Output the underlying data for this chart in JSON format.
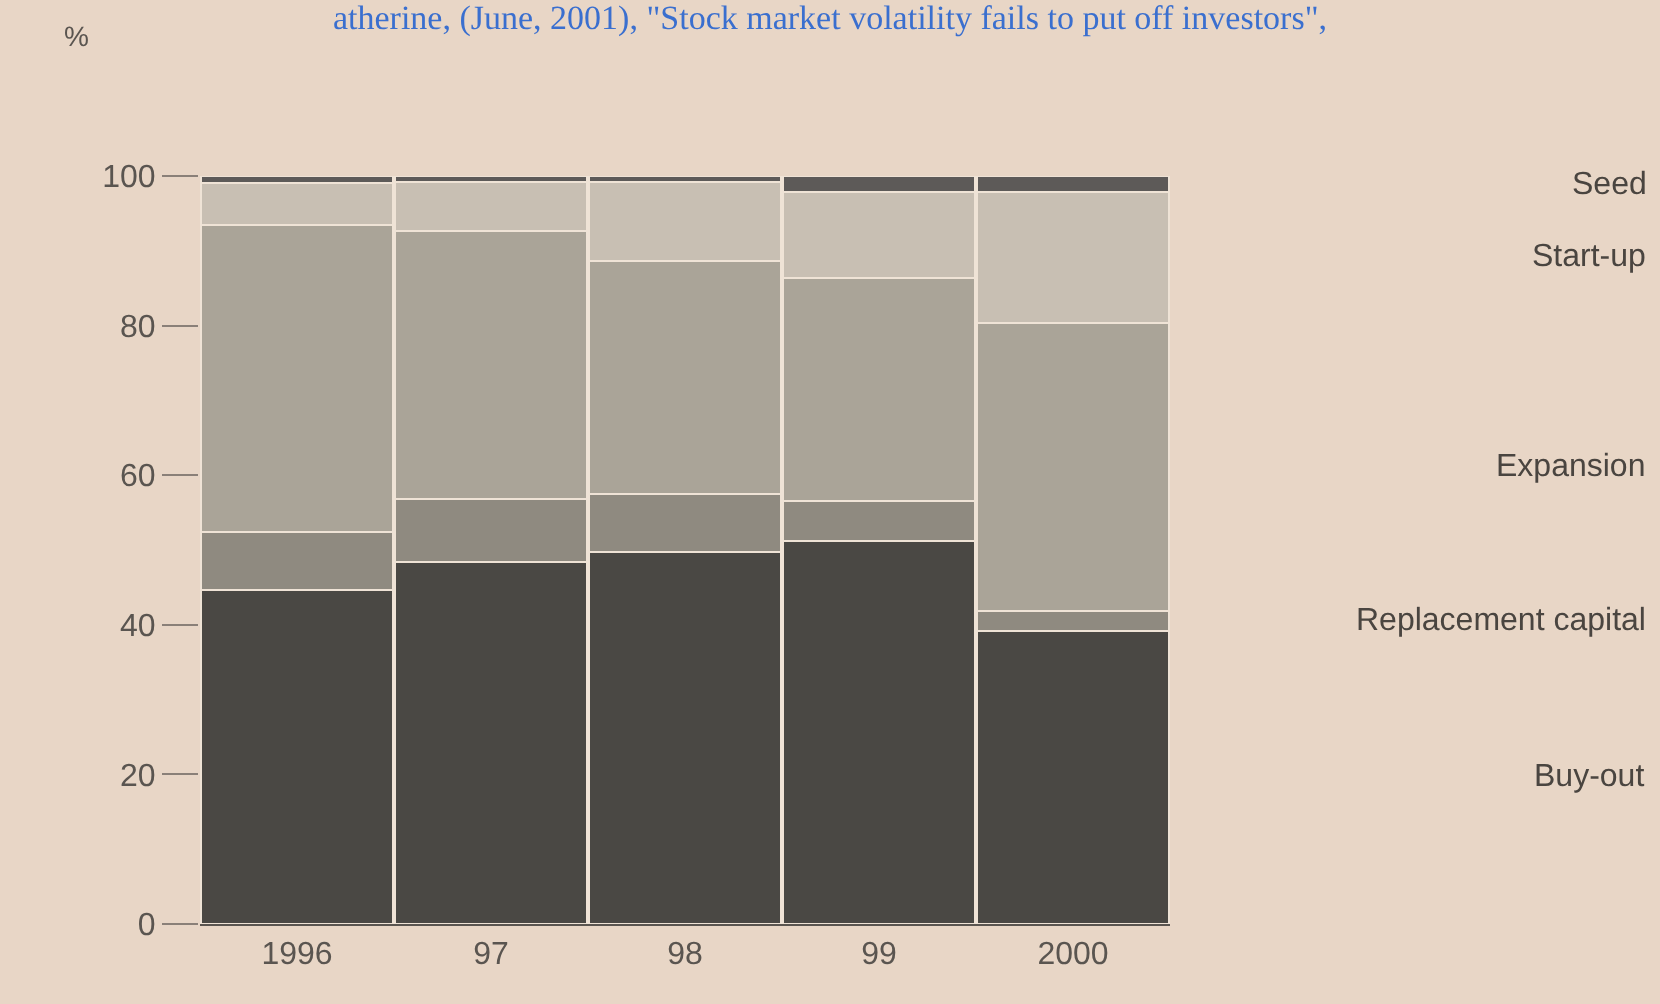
{
  "chart_data": {
    "type": "bar",
    "stacked": true,
    "title": "atherine, (June, 2001), \"Stock market volatility fails to put off investors\",",
    "ylabel": "%",
    "categories": [
      "1996",
      "97",
      "98",
      "99",
      "2000"
    ],
    "series": [
      {
        "name": "Buy-out",
        "color": "#4a4844",
        "values": [
          44.6,
          48.4,
          49.8,
          51.2,
          39.2
        ]
      },
      {
        "name": "Replacement capital",
        "color": "#8f8a80",
        "values": [
          7.8,
          8.4,
          7.7,
          5.4,
          2.7
        ]
      },
      {
        "name": "Expansion",
        "color": "#aaa498",
        "values": [
          41,
          35.9,
          31.1,
          29.7,
          38.4
        ]
      },
      {
        "name": "Start-up",
        "color": "#c8bfb3",
        "values": [
          5.6,
          6.5,
          10.6,
          11.5,
          17.5
        ]
      },
      {
        "name": "Seed",
        "color": "#5d5a58",
        "values": [
          1,
          0.8,
          0.8,
          2.2,
          2.2
        ]
      }
    ],
    "ylim": [
      0,
      100
    ],
    "yticks": [
      0,
      20,
      40,
      60,
      80,
      100
    ],
    "legend": false
  }
}
